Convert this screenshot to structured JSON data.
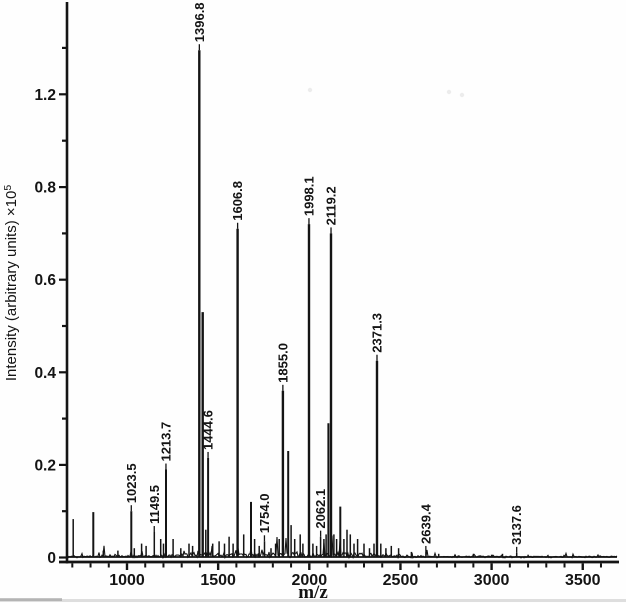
{
  "figure": {
    "background": "#fefefe",
    "ink": "#141414"
  },
  "chart_data": {
    "type": "line",
    "subtype": "mass-spectrum-stick-plot",
    "title": "",
    "xlabel": "m/z",
    "ylabel": "Intensity (arbitrary units) ×10⁵",
    "x_axis": {
      "min": 680,
      "max": 3710,
      "major_ticks": [
        1000,
        1500,
        2000,
        2500,
        3000,
        3500
      ],
      "major_tick_labels": [
        "1000",
        "1500",
        "2000",
        "2500",
        "3000",
        "3500"
      ],
      "minor_tick_step": 100,
      "grid": false
    },
    "y_axis": {
      "min": 0,
      "ticks_as_printed": [
        {
          "value": 0,
          "label": "0"
        },
        {
          "value": 0.1,
          "label": ""
        },
        {
          "value": 0.2,
          "label": "0.2"
        },
        {
          "value": 0.3,
          "label": ""
        },
        {
          "value": 0.4,
          "label": "0.4"
        },
        {
          "value": 0.5,
          "label": ""
        },
        {
          "value": 0.6,
          "label": "0.6"
        },
        {
          "value": 0.7,
          "label": ""
        },
        {
          "value": 0.8,
          "label": "0.8"
        },
        {
          "value": 1.0,
          "label": ""
        },
        {
          "value": 1.2,
          "label": "1.2"
        },
        {
          "value": 1.4,
          "label": ""
        }
      ],
      "grid": false
    },
    "legend": null,
    "labeled_peaks": [
      {
        "label": "1023.5",
        "mz": 1023.5,
        "intensity": 0.1
      },
      {
        "label": "1149.5",
        "mz": 1149.5,
        "intensity": 0.055
      },
      {
        "label": "1213.7",
        "mz": 1213.7,
        "intensity": 0.19
      },
      {
        "label": "1396.8",
        "mz": 1396.8,
        "intensity": 1.39
      },
      {
        "label": "1444.6",
        "mz": 1444.6,
        "intensity": 0.215
      },
      {
        "label": "1606.8",
        "mz": 1606.8,
        "intensity": 0.71
      },
      {
        "label": "1754.0",
        "mz": 1754.0,
        "intensity": 0.035
      },
      {
        "label": "1855.0",
        "mz": 1855.0,
        "intensity": 0.36
      },
      {
        "label": "1998.1",
        "mz": 1998.1,
        "intensity": 0.72
      },
      {
        "label": "2062.1",
        "mz": 2062.1,
        "intensity": 0.045
      },
      {
        "label": "2119.2",
        "mz": 2119.2,
        "intensity": 0.7
      },
      {
        "label": "2371.3",
        "mz": 2371.3,
        "intensity": 0.425
      },
      {
        "label": "2639.4",
        "mz": 2639.4,
        "intensity": 0.012
      },
      {
        "label": "3137.6",
        "mz": 3137.6,
        "intensity": 0.01
      }
    ],
    "unlabeled_peaks": [
      [
        705,
        0.083
      ],
      [
        815,
        0.098
      ],
      [
        870,
        0.015
      ],
      [
        950,
        0.015
      ],
      [
        1040,
        0.02
      ],
      [
        1080,
        0.03
      ],
      [
        1105,
        0.025
      ],
      [
        1185,
        0.04
      ],
      [
        1200,
        0.03
      ],
      [
        1253,
        0.04
      ],
      [
        1295,
        0.02
      ],
      [
        1340,
        0.03
      ],
      [
        1360,
        0.025
      ],
      [
        1415,
        0.53
      ],
      [
        1432,
        0.06
      ],
      [
        1470,
        0.03
      ],
      [
        1505,
        0.035
      ],
      [
        1535,
        0.03
      ],
      [
        1560,
        0.045
      ],
      [
        1582,
        0.03
      ],
      [
        1640,
        0.05
      ],
      [
        1680,
        0.12
      ],
      [
        1700,
        0.04
      ],
      [
        1725,
        0.025
      ],
      [
        1790,
        0.02
      ],
      [
        1815,
        0.03
      ],
      [
        1835,
        0.04
      ],
      [
        1884,
        0.23
      ],
      [
        1900,
        0.07
      ],
      [
        1920,
        0.04
      ],
      [
        1950,
        0.05
      ],
      [
        1965,
        0.03
      ],
      [
        2020,
        0.03
      ],
      [
        2040,
        0.025
      ],
      [
        2080,
        0.04
      ],
      [
        2092,
        0.05
      ],
      [
        2105,
        0.29
      ],
      [
        2135,
        0.05
      ],
      [
        2150,
        0.04
      ],
      [
        2170,
        0.11
      ],
      [
        2190,
        0.04
      ],
      [
        2207,
        0.06
      ],
      [
        2225,
        0.05
      ],
      [
        2245,
        0.03
      ],
      [
        2265,
        0.04
      ],
      [
        2300,
        0.03
      ],
      [
        2330,
        0.02
      ],
      [
        2355,
        0.03
      ],
      [
        2392,
        0.03
      ],
      [
        2420,
        0.02
      ],
      [
        2450,
        0.025
      ],
      [
        2490,
        0.02
      ],
      [
        2560,
        0.012
      ],
      [
        2710,
        0.008
      ],
      [
        2800,
        0.006
      ],
      [
        2900,
        0.008
      ],
      [
        3000,
        0.006
      ],
      [
        3060,
        0.008
      ],
      [
        3200,
        0.006
      ]
    ]
  }
}
